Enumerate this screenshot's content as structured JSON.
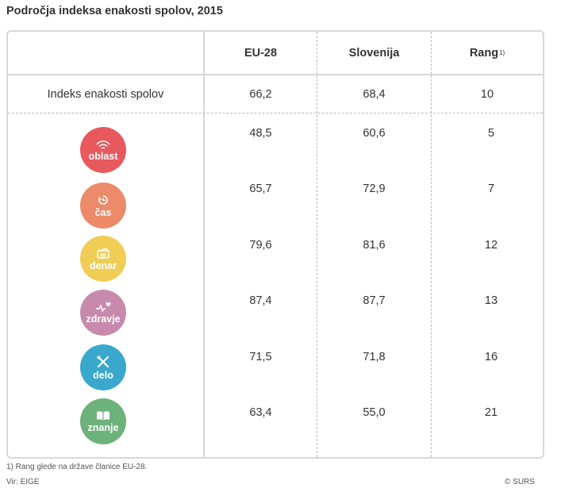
{
  "title": "Področja indeksa enakosti spolov, 2015",
  "headers": {
    "col1": "EU-28",
    "col2": "Slovenija",
    "col3": "Rang",
    "col3_sup": "1)"
  },
  "index_row": {
    "label": "Indeks enakosti spolov",
    "eu": "66,2",
    "si": "68,4",
    "rank": "10"
  },
  "domains": [
    {
      "label": "oblast",
      "icon": "wifi-icon",
      "color": "#e8595e",
      "eu": "48,5",
      "si": "60,6",
      "rank": "5"
    },
    {
      "label": "čas",
      "icon": "clock-icon",
      "color": "#ec8a69",
      "eu": "65,7",
      "si": "72,9",
      "rank": "7"
    },
    {
      "label": "denar",
      "icon": "wallet-icon",
      "color": "#f0cd55",
      "eu": "79,6",
      "si": "81,6",
      "rank": "12"
    },
    {
      "label": "zdravje",
      "icon": "heartbeat-icon",
      "color": "#c88aac",
      "eu": "87,4",
      "si": "87,7",
      "rank": "13"
    },
    {
      "label": "delo",
      "icon": "tools-icon",
      "color": "#3aa8cc",
      "eu": "71,5",
      "si": "71,8",
      "rank": "16"
    },
    {
      "label": "znanje",
      "icon": "book-icon",
      "color": "#6cb27a",
      "eu": "63,4",
      "si": "55,0",
      "rank": "21"
    }
  ],
  "footnote": "1) Rang glede na države članice EU-28.",
  "source": "Vir: EIGE",
  "copyright": "© SURS"
}
